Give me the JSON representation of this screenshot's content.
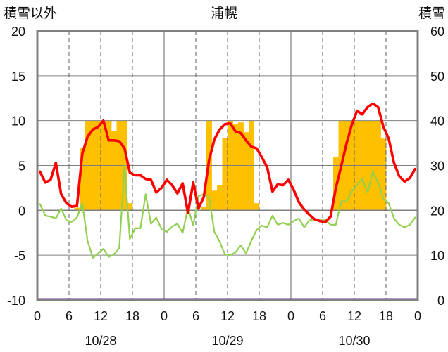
{
  "chart_data": {
    "type": "bar+line",
    "title": "浦幌",
    "left_axis_label": "積雪以外",
    "right_axis_label": "積雪",
    "left_ylim": [
      -10,
      20
    ],
    "right_ylim": [
      0,
      60
    ],
    "left_ticks": [
      "20",
      "15",
      "10",
      "5",
      "0",
      "-5",
      "-10"
    ],
    "right_ticks": [
      "60",
      "50",
      "40",
      "30",
      "20",
      "10",
      "0"
    ],
    "x_hour_ticks": [
      "0",
      "6",
      "12",
      "18",
      "0",
      "6",
      "12",
      "18",
      "0",
      "6",
      "12",
      "18",
      "0"
    ],
    "dates": [
      "10/28",
      "10/29",
      "10/30"
    ],
    "x_range_hours": [
      0,
      72
    ],
    "grid": "vertical dashed at 6h/12h/18h, solid at day boundaries, horizontal solid",
    "colors": {
      "bars": "#ffc000",
      "red_line": "#ff0000",
      "green_line": "#92d050",
      "purple_line": "#7030a0",
      "grid": "#808080",
      "zero_line": "#808080"
    },
    "bars_left_units": [
      0,
      0,
      0,
      0,
      0,
      0,
      0,
      0.3,
      6.9,
      10.0,
      10.0,
      10.0,
      10.0,
      10.0,
      8.8,
      10.0,
      10.0,
      0.8,
      0,
      0,
      0,
      0,
      0,
      0,
      0,
      0,
      0,
      0,
      0,
      0,
      0,
      0.4,
      10.0,
      2.2,
      2.8,
      8.1,
      10.0,
      9.6,
      9.8,
      8.7,
      10.0,
      0.8,
      0,
      0,
      0,
      0,
      0,
      0,
      0,
      0,
      0,
      0,
      0,
      0,
      0,
      0,
      5.9,
      10.0,
      10.0,
      10.0,
      10.0,
      10.0,
      10.0,
      10.0,
      10.0,
      8.0,
      0,
      0,
      0,
      0,
      0,
      0
    ],
    "red_series": [
      4.3,
      3.1,
      3.4,
      5.3,
      1.8,
      0.8,
      0.4,
      0.5,
      6.3,
      8.2,
      9.0,
      9.3,
      10.0,
      7.8,
      7.8,
      7.7,
      6.9,
      4.2,
      3.9,
      3.9,
      3.5,
      3.4,
      2.0,
      2.5,
      3.4,
      2.8,
      1.9,
      3.0,
      -0.3,
      3.1,
      0.2,
      1.5,
      5.6,
      7.9,
      9.0,
      9.6,
      9.7,
      8.8,
      8.6,
      7.8,
      7.1,
      6.9,
      5.9,
      4.8,
      2.1,
      2.9,
      2.8,
      3.4,
      2.3,
      0.9,
      0.1,
      -0.5,
      -1.0,
      -1.2,
      -1.3,
      -0.7,
      2.5,
      4.9,
      7.4,
      9.5,
      11.1,
      10.7,
      11.5,
      11.9,
      11.5,
      9.3,
      8.0,
      5.3,
      3.8,
      3.2,
      3.6,
      4.6
    ],
    "green_series": [
      0.7,
      -0.6,
      -0.7,
      -0.9,
      0.2,
      -1.1,
      -1.3,
      -0.8,
      0.8,
      -3.4,
      -5.3,
      -4.8,
      -4.3,
      -5.2,
      -4.9,
      -4.2,
      5.0,
      -3.2,
      -2.0,
      -2.0,
      1.8,
      -1.5,
      -0.8,
      -2.1,
      -2.4,
      -1.8,
      -1.5,
      -2.5,
      0.3,
      -1.7,
      1.6,
      1.8,
      1.4,
      -2.4,
      -3.5,
      -4.9,
      -5.0,
      -4.7,
      -3.9,
      -4.8,
      -3.4,
      -2.2,
      -1.7,
      -1.9,
      -0.6,
      -1.6,
      -1.4,
      -1.6,
      -1.2,
      -0.9,
      -1.9,
      -1.1,
      -1.0,
      -1.1,
      -1.1,
      -1.6,
      -1.6,
      1.0,
      1.0,
      2.1,
      2.8,
      3.5,
      2.0,
      4.3,
      3.1,
      1.3,
      0.8,
      -0.9,
      -1.6,
      -1.9,
      -1.6,
      -0.8
    ],
    "purple_series_right_units": 0
  }
}
